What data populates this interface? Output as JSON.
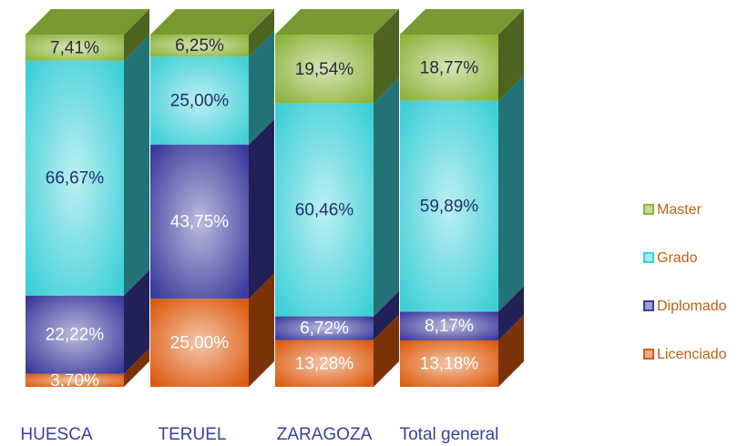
{
  "chart_data": {
    "type": "bar3d_stacked",
    "categories": [
      "HUESCA",
      "TERUEL",
      "ZARAGOZA",
      "Total general"
    ],
    "series": [
      {
        "name": "Licenciado",
        "color": "#dd5c0e",
        "label_color": "#ffffff",
        "values": [
          3.7,
          25.0,
          13.28,
          13.18
        ],
        "value_labels": [
          "3,70%",
          "25,00%",
          "13,28%",
          "13,18%"
        ]
      },
      {
        "name": "Diplomado",
        "color": "#3c3c9e",
        "label_color": "#ffffff",
        "values": [
          22.22,
          43.75,
          6.72,
          8.17
        ],
        "value_labels": [
          "22,22%",
          "43,75%",
          "6,72%",
          "8,17%"
        ]
      },
      {
        "name": "Grado",
        "color": "#3fd0d6",
        "label_color": "#1f2f6f",
        "values": [
          66.67,
          25.0,
          60.46,
          59.89
        ],
        "value_labels": [
          "66,67%",
          "25,00%",
          "60,46%",
          "59,89%"
        ]
      },
      {
        "name": "Master",
        "color": "#8cb43a",
        "label_color": "#2a2a3a",
        "values": [
          7.41,
          6.25,
          19.54,
          18.77
        ],
        "value_labels": [
          "7,41%",
          "6,25%",
          "19,54%",
          "18,77%"
        ]
      }
    ],
    "legend": "right"
  }
}
